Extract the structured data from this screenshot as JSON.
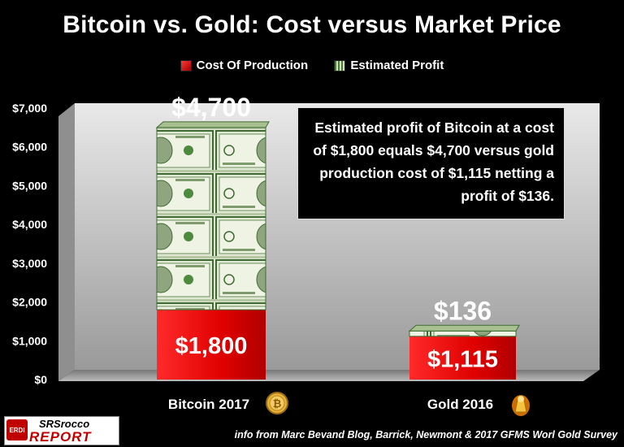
{
  "chart_data": {
    "type": "bar",
    "stacked": true,
    "title": "Bitcoin vs. Gold: Cost versus Market Price",
    "categories": [
      "Bitcoin 2017",
      "Gold 2016"
    ],
    "series": [
      {
        "name": "Cost Of Production",
        "values": [
          1800,
          1115
        ],
        "labels": [
          "$1,800",
          "$1,115"
        ],
        "color": "#dd1111"
      },
      {
        "name": "Estimated Profit",
        "values": [
          4700,
          136
        ],
        "labels": [
          "$4,700",
          "$136"
        ],
        "color": "#6b8f4e"
      }
    ],
    "ylim": [
      0,
      7000
    ],
    "yticks": [
      0,
      1000,
      2000,
      3000,
      4000,
      5000,
      6000,
      7000
    ],
    "ytick_labels": [
      "$0",
      "$1,000",
      "$2,000",
      "$3,000",
      "$4,000",
      "$5,000",
      "$6,000",
      "$7,000"
    ],
    "grid": false,
    "legend_position": "top",
    "annotation": "Estimated profit of Bitcoin at a cost of $1,800 equals $4,700 versus gold production cost of $1,115 netting a profit of $136."
  },
  "source_note": "info from Marc Bevand Blog, Barrick, Newmont & 2017 GFMS Worl Gold Survey",
  "logo": {
    "mark": "ERDI",
    "line1": "SRSrocco",
    "line2": "REPORT"
  },
  "icons": [
    "bitcoin-coin-icon",
    "gold-bar-icon"
  ]
}
